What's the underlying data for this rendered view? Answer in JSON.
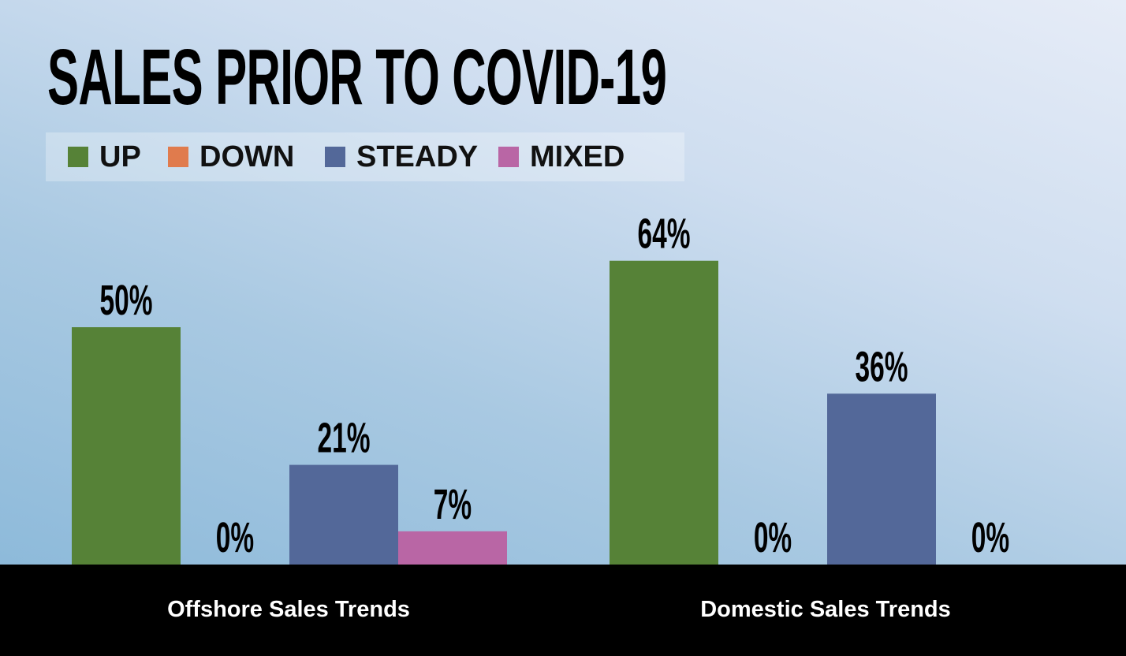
{
  "chart_data": {
    "type": "bar",
    "title": "SALES PRIOR TO COVID-19",
    "categories": [
      "Offshore Sales Trends",
      "Domestic Sales Trends"
    ],
    "series": [
      {
        "name": "UP",
        "color": "#568237",
        "values": [
          50,
          64
        ],
        "labels": [
          "50%",
          "64%"
        ]
      },
      {
        "name": "DOWN",
        "color": "#e07b4d",
        "values": [
          0,
          0
        ],
        "labels": [
          "0%",
          "0%"
        ]
      },
      {
        "name": "STEADY",
        "color": "#536899",
        "values": [
          21,
          36
        ],
        "labels": [
          "21%",
          "36%"
        ]
      },
      {
        "name": "MIXED",
        "color": "#b966a5",
        "values": [
          7,
          0
        ],
        "labels": [
          "7%",
          "0%"
        ]
      }
    ],
    "ylim": [
      0,
      100
    ],
    "xlabel": "",
    "ylabel": "",
    "grid": false,
    "legend": "top-left"
  }
}
